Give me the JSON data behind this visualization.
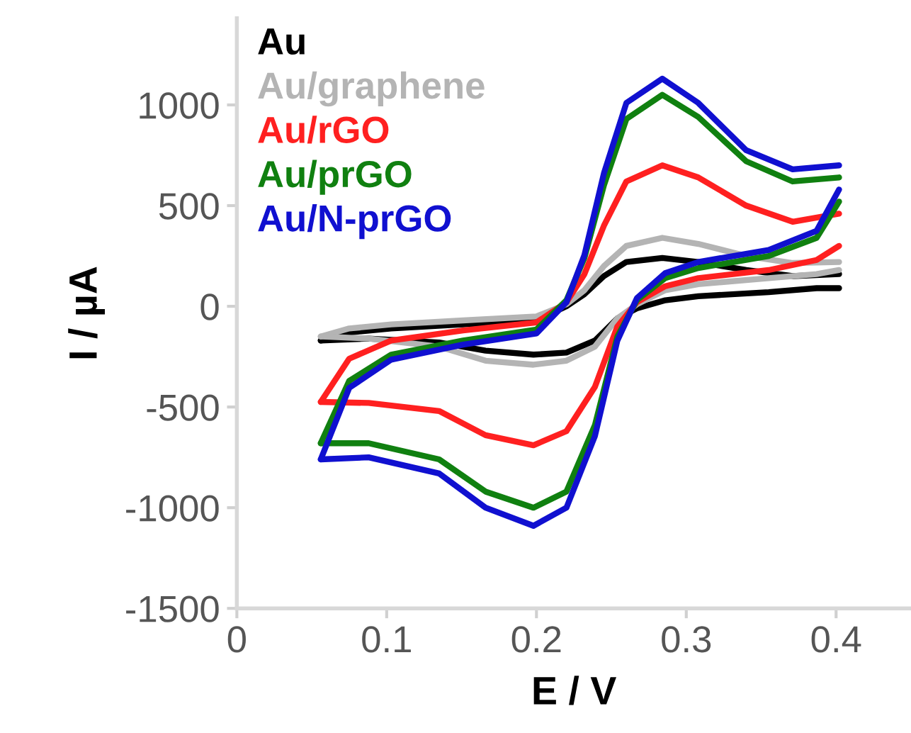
{
  "chart_data": {
    "type": "line",
    "xlabel": "E / V",
    "ylabel": "I / µA",
    "xlim": [
      0,
      0.45
    ],
    "ylim": [
      -1500,
      1430
    ],
    "xticks": [
      0,
      0.1,
      0.2,
      0.3,
      0.4
    ],
    "yticks": [
      -1500,
      -1000,
      -500,
      0,
      500,
      1000
    ],
    "grid": false,
    "marker": "none",
    "line_style": "solid",
    "series": [
      {
        "name": "Au",
        "color": "#000000",
        "x": [
          0.056,
          0.075,
          0.103,
          0.151,
          0.2,
          0.22,
          0.232,
          0.245,
          0.26,
          0.284,
          0.308,
          0.34,
          0.371,
          0.402
        ],
        "values": [
          -170,
          -130,
          -110,
          -90,
          -70,
          0,
          60,
          150,
          220,
          240,
          220,
          180,
          150,
          160
        ]
      },
      {
        "color": "#000000",
        "x": [
          0.056,
          0.088,
          0.135,
          0.166,
          0.198,
          0.22,
          0.239,
          0.254,
          0.267,
          0.286,
          0.308,
          0.355,
          0.387,
          0.402
        ],
        "values": [
          -170,
          -160,
          -180,
          -220,
          -240,
          -230,
          -170,
          -60,
          -10,
          30,
          50,
          70,
          90,
          90
        ]
      },
      {
        "name": "Au/graphene",
        "color": "#b4b4b4",
        "x": [
          0.056,
          0.075,
          0.103,
          0.151,
          0.2,
          0.22,
          0.232,
          0.245,
          0.26,
          0.284,
          0.308,
          0.34,
          0.371,
          0.402
        ],
        "values": [
          -150,
          -110,
          -90,
          -70,
          -50,
          10,
          80,
          200,
          300,
          340,
          310,
          250,
          215,
          220
        ]
      },
      {
        "color": "#b4b4b4",
        "x": [
          0.056,
          0.088,
          0.135,
          0.166,
          0.198,
          0.22,
          0.239,
          0.254,
          0.267,
          0.286,
          0.308,
          0.355,
          0.387,
          0.402
        ],
        "values": [
          -150,
          -160,
          -200,
          -270,
          -290,
          -270,
          -200,
          -60,
          10,
          80,
          110,
          140,
          160,
          180
        ]
      },
      {
        "name": "Au/rGO",
        "color": "#ff2020",
        "x": [
          0.056,
          0.075,
          0.103,
          0.151,
          0.2,
          0.22,
          0.232,
          0.245,
          0.26,
          0.284,
          0.308,
          0.34,
          0.371,
          0.402
        ],
        "values": [
          -475,
          -260,
          -170,
          -120,
          -80,
          20,
          160,
          400,
          620,
          700,
          640,
          500,
          420,
          460
        ]
      },
      {
        "color": "#ff2020",
        "x": [
          0.056,
          0.088,
          0.135,
          0.166,
          0.198,
          0.22,
          0.239,
          0.254,
          0.267,
          0.286,
          0.308,
          0.355,
          0.387,
          0.402
        ],
        "values": [
          -475,
          -480,
          -520,
          -640,
          -690,
          -620,
          -400,
          -100,
          20,
          100,
          140,
          180,
          230,
          300
        ]
      },
      {
        "name": "Au/prGO",
        "color": "#108010",
        "x": [
          0.056,
          0.075,
          0.103,
          0.151,
          0.2,
          0.22,
          0.232,
          0.245,
          0.26,
          0.284,
          0.308,
          0.34,
          0.371,
          0.402
        ],
        "values": [
          -680,
          -370,
          -240,
          -170,
          -115,
          30,
          240,
          600,
          930,
          1050,
          940,
          720,
          620,
          640
        ]
      },
      {
        "color": "#108010",
        "x": [
          0.056,
          0.088,
          0.135,
          0.166,
          0.198,
          0.22,
          0.239,
          0.254,
          0.267,
          0.286,
          0.308,
          0.355,
          0.387,
          0.402
        ],
        "values": [
          -680,
          -680,
          -760,
          -920,
          -1000,
          -920,
          -590,
          -150,
          30,
          140,
          190,
          250,
          340,
          520
        ]
      },
      {
        "name": "Au/N-prGO",
        "color": "#1010d0",
        "x": [
          0.056,
          0.075,
          0.103,
          0.151,
          0.2,
          0.22,
          0.232,
          0.245,
          0.26,
          0.284,
          0.308,
          0.34,
          0.371,
          0.402
        ],
        "values": [
          -760,
          -405,
          -265,
          -190,
          -135,
          20,
          255,
          660,
          1010,
          1130,
          1010,
          775,
          680,
          700
        ]
      },
      {
        "color": "#1010d0",
        "x": [
          0.056,
          0.088,
          0.135,
          0.166,
          0.198,
          0.22,
          0.239,
          0.254,
          0.267,
          0.286,
          0.308,
          0.355,
          0.387,
          0.402
        ],
        "values": [
          -760,
          -750,
          -830,
          -1000,
          -1090,
          -1000,
          -645,
          -170,
          40,
          165,
          220,
          280,
          375,
          580
        ]
      }
    ]
  }
}
